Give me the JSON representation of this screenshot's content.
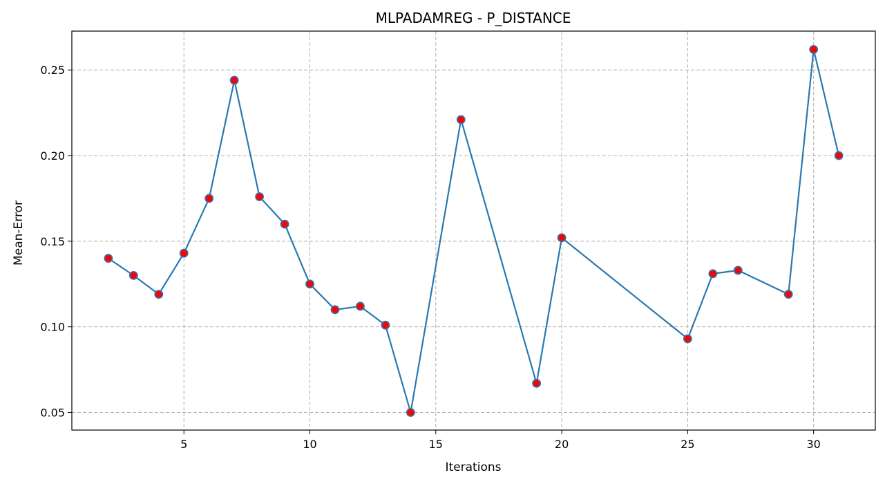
{
  "chart_data": {
    "type": "line",
    "title": "MLPADAMREG - P_DISTANCE",
    "xlabel": "Iterations",
    "ylabel": "Mean-Error",
    "xlim": [
      0.55,
      32.45
    ],
    "ylim": [
      0.0397,
      0.2727
    ],
    "xticks": [
      5,
      10,
      15,
      20,
      25,
      30
    ],
    "xtick_labels": [
      "5",
      "10",
      "15",
      "20",
      "25",
      "30"
    ],
    "yticks": [
      0.05,
      0.1,
      0.15,
      0.2,
      0.25
    ],
    "ytick_labels": [
      "0.05",
      "0.10",
      "0.15",
      "0.20",
      "0.25"
    ],
    "grid": true,
    "grid_style": "dashed",
    "line_color": "#2878b0",
    "marker_face_color": "#ff0000",
    "marker_edge_color": "#3a6ea5",
    "series": [
      {
        "x": [
          2,
          3,
          4,
          5,
          6,
          7,
          8,
          9,
          10,
          11,
          12,
          13,
          14,
          16,
          19,
          20,
          25,
          26,
          27,
          29,
          30,
          31
        ],
        "values": [
          0.14,
          0.13,
          0.119,
          0.143,
          0.175,
          0.244,
          0.176,
          0.16,
          0.125,
          0.11,
          0.112,
          0.101,
          0.05,
          0.221,
          0.067,
          0.152,
          0.093,
          0.131,
          0.133,
          0.119,
          0.262,
          0.2
        ]
      }
    ]
  }
}
